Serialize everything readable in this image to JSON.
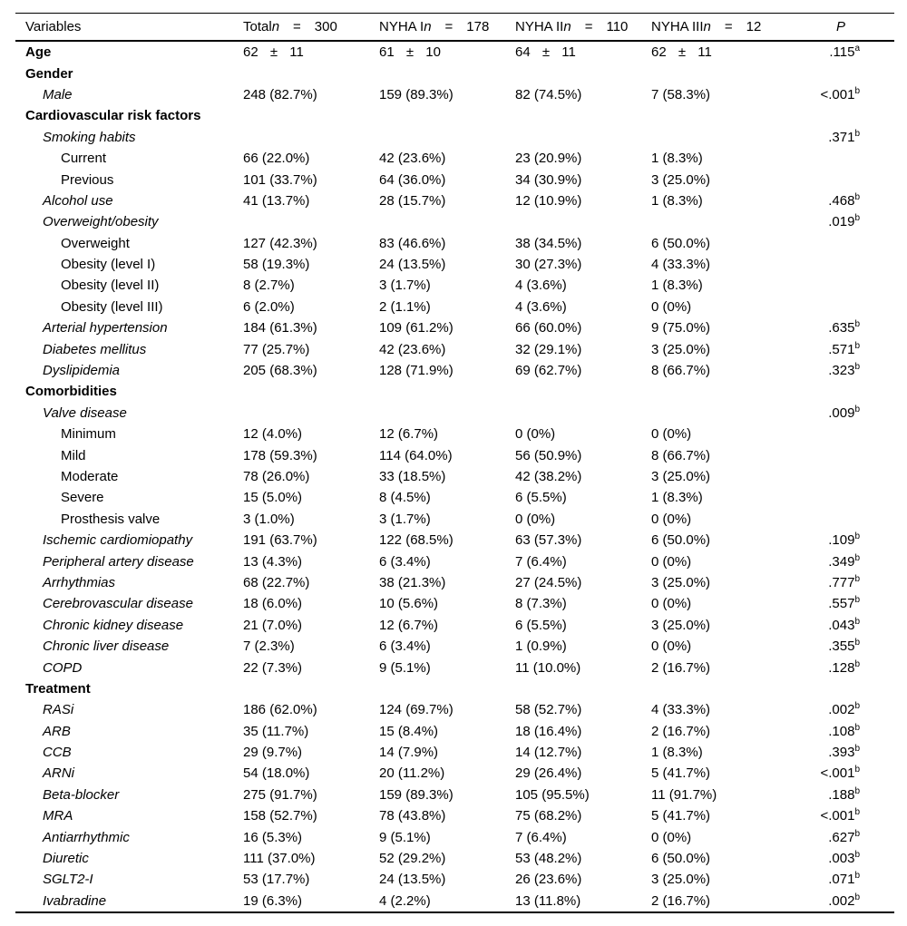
{
  "table": {
    "columns": [
      {
        "label": "Variables"
      },
      {
        "label": "Total",
        "n_symbol": "n",
        "eq": "=",
        "n": "300"
      },
      {
        "label": "NYHA I",
        "n_symbol": "n",
        "eq": "=",
        "n": "178"
      },
      {
        "label": "NYHA II",
        "n_symbol": "n",
        "eq": "=",
        "n": "110"
      },
      {
        "label": "NYHA III",
        "n_symbol": "n",
        "eq": "=",
        "n": "12"
      },
      {
        "label": "P"
      }
    ],
    "rows": [
      {
        "label": "Age",
        "level": 0,
        "style": "bold",
        "pm": true,
        "cells": [
          "62 ± 11",
          "61 ± 10",
          "64 ± 11",
          "62 ± 11"
        ],
        "p": ".115",
        "p_sup": "a"
      },
      {
        "label": "Gender",
        "level": 0,
        "style": "bold"
      },
      {
        "label": "Male",
        "level": 1,
        "style": "italic",
        "cells": [
          "248 (82.7%)",
          "159 (89.3%)",
          "82 (74.5%)",
          "7 (58.3%)"
        ],
        "p": "<.001",
        "p_sup": "b"
      },
      {
        "label": "Cardiovascular risk factors",
        "level": 0,
        "style": "bold"
      },
      {
        "label": "Smoking habits",
        "level": 1,
        "style": "italic",
        "p": ".371",
        "p_sup": "b"
      },
      {
        "label": "Current",
        "level": 2,
        "style": "plain",
        "cells": [
          "66 (22.0%)",
          "42 (23.6%)",
          "23 (20.9%)",
          "1 (8.3%)"
        ]
      },
      {
        "label": "Previous",
        "level": 2,
        "style": "plain",
        "cells": [
          "101 (33.7%)",
          "64 (36.0%)",
          "34 (30.9%)",
          "3 (25.0%)"
        ]
      },
      {
        "label": "Alcohol use",
        "level": 1,
        "style": "italic",
        "cells": [
          "41 (13.7%)",
          "28 (15.7%)",
          "12 (10.9%)",
          "1 (8.3%)"
        ],
        "p": ".468",
        "p_sup": "b"
      },
      {
        "label": "Overweight/obesity",
        "level": 1,
        "style": "italic",
        "p": ".019",
        "p_sup": "b"
      },
      {
        "label": "Overweight",
        "level": 2,
        "style": "plain",
        "cells": [
          "127 (42.3%)",
          "83 (46.6%)",
          "38 (34.5%)",
          "6 (50.0%)"
        ]
      },
      {
        "label": "Obesity (level I)",
        "level": 2,
        "style": "plain",
        "cells": [
          "58 (19.3%)",
          "24 (13.5%)",
          "30 (27.3%)",
          "4 (33.3%)"
        ]
      },
      {
        "label": "Obesity (level II)",
        "level": 2,
        "style": "plain",
        "cells": [
          "8 (2.7%)",
          "3 (1.7%)",
          "4 (3.6%)",
          "1 (8.3%)"
        ]
      },
      {
        "label": "Obesity (level III)",
        "level": 2,
        "style": "plain",
        "cells": [
          "6 (2.0%)",
          "2 (1.1%)",
          "4 (3.6%)",
          "0 (0%)"
        ]
      },
      {
        "label": "Arterial hypertension",
        "level": 1,
        "style": "italic",
        "cells": [
          "184 (61.3%)",
          "109 (61.2%)",
          "66 (60.0%)",
          "9 (75.0%)"
        ],
        "p": ".635",
        "p_sup": "b"
      },
      {
        "label": "Diabetes mellitus",
        "level": 1,
        "style": "italic",
        "cells": [
          "77 (25.7%)",
          "42 (23.6%)",
          "32 (29.1%)",
          "3 (25.0%)"
        ],
        "p": ".571",
        "p_sup": "b"
      },
      {
        "label": "Dyslipidemia",
        "level": 1,
        "style": "italic",
        "cells": [
          "205 (68.3%)",
          "128 (71.9%)",
          "69 (62.7%)",
          "8 (66.7%)"
        ],
        "p": ".323",
        "p_sup": "b"
      },
      {
        "label": "Comorbidities",
        "level": 0,
        "style": "bold"
      },
      {
        "label": "Valve disease",
        "level": 1,
        "style": "italic",
        "p": ".009",
        "p_sup": "b"
      },
      {
        "label": "Minimum",
        "level": 2,
        "style": "plain",
        "cells": [
          "12 (4.0%)",
          "12 (6.7%)",
          "0 (0%)",
          "0 (0%)"
        ]
      },
      {
        "label": "Mild",
        "level": 2,
        "style": "plain",
        "cells": [
          "178 (59.3%)",
          "114 (64.0%)",
          "56 (50.9%)",
          "8 (66.7%)"
        ]
      },
      {
        "label": "Moderate",
        "level": 2,
        "style": "plain",
        "cells": [
          "78 (26.0%)",
          "33 (18.5%)",
          "42 (38.2%)",
          "3 (25.0%)"
        ]
      },
      {
        "label": "Severe",
        "level": 2,
        "style": "plain",
        "cells": [
          "15 (5.0%)",
          "8 (4.5%)",
          "6 (5.5%)",
          "1 (8.3%)"
        ]
      },
      {
        "label": "Prosthesis valve",
        "level": 2,
        "style": "plain",
        "cells": [
          "3 (1.0%)",
          "3 (1.7%)",
          "0 (0%)",
          "0 (0%)"
        ]
      },
      {
        "label": "Ischemic cardiomiopathy",
        "level": 1,
        "style": "italic",
        "cells": [
          "191 (63.7%)",
          "122 (68.5%)",
          "63 (57.3%)",
          "6 (50.0%)"
        ],
        "p": ".109",
        "p_sup": "b"
      },
      {
        "label": "Peripheral artery disease",
        "level": 1,
        "style": "italic",
        "cells": [
          "13 (4.3%)",
          "6 (3.4%)",
          "7 (6.4%)",
          "0 (0%)"
        ],
        "p": ".349",
        "p_sup": "b"
      },
      {
        "label": "Arrhythmias",
        "level": 1,
        "style": "italic",
        "cells": [
          "68 (22.7%)",
          "38 (21.3%)",
          "27 (24.5%)",
          "3 (25.0%)"
        ],
        "p": ".777",
        "p_sup": "b"
      },
      {
        "label": "Cerebrovascular disease",
        "level": 1,
        "style": "italic",
        "cells": [
          "18 (6.0%)",
          "10 (5.6%)",
          "8 (7.3%)",
          "0 (0%)"
        ],
        "p": ".557",
        "p_sup": "b"
      },
      {
        "label": "Chronic kidney disease",
        "level": 1,
        "style": "italic",
        "cells": [
          "21 (7.0%)",
          "12 (6.7%)",
          "6 (5.5%)",
          "3 (25.0%)"
        ],
        "p": ".043",
        "p_sup": "b"
      },
      {
        "label": "Chronic liver disease",
        "level": 1,
        "style": "italic",
        "cells": [
          "7 (2.3%)",
          "6 (3.4%)",
          "1 (0.9%)",
          "0 (0%)"
        ],
        "p": ".355",
        "p_sup": "b"
      },
      {
        "label": "COPD",
        "level": 1,
        "style": "italic",
        "cells": [
          "22 (7.3%)",
          "9 (5.1%)",
          "11 (10.0%)",
          "2 (16.7%)"
        ],
        "p": ".128",
        "p_sup": "b"
      },
      {
        "label": "Treatment",
        "level": 0,
        "style": "bold"
      },
      {
        "label": "RASi",
        "level": 1,
        "style": "italic",
        "cells": [
          "186 (62.0%)",
          "124 (69.7%)",
          "58 (52.7%)",
          "4 (33.3%)"
        ],
        "p": ".002",
        "p_sup": "b"
      },
      {
        "label": "ARB",
        "level": 1,
        "style": "italic",
        "cells": [
          "35 (11.7%)",
          "15 (8.4%)",
          "18 (16.4%)",
          "2 (16.7%)"
        ],
        "p": ".108",
        "p_sup": "b"
      },
      {
        "label": "CCB",
        "level": 1,
        "style": "italic",
        "cells": [
          "29 (9.7%)",
          "14 (7.9%)",
          "14 (12.7%)",
          "1 (8.3%)"
        ],
        "p": ".393",
        "p_sup": "b"
      },
      {
        "label": "ARNi",
        "level": 1,
        "style": "italic",
        "cells": [
          "54 (18.0%)",
          "20 (11.2%)",
          "29 (26.4%)",
          "5 (41.7%)"
        ],
        "p": "<.001",
        "p_sup": "b"
      },
      {
        "label": "Beta-blocker",
        "level": 1,
        "style": "italic",
        "cells": [
          "275 (91.7%)",
          "159 (89.3%)",
          "105 (95.5%)",
          "11 (91.7%)"
        ],
        "p": ".188",
        "p_sup": "b"
      },
      {
        "label": "MRA",
        "level": 1,
        "style": "italic",
        "cells": [
          "158 (52.7%)",
          "78 (43.8%)",
          "75 (68.2%)",
          "5 (41.7%)"
        ],
        "p": "<.001",
        "p_sup": "b"
      },
      {
        "label": "Antiarrhythmic",
        "level": 1,
        "style": "italic",
        "cells": [
          "16 (5.3%)",
          "9 (5.1%)",
          "7 (6.4%)",
          "0 (0%)"
        ],
        "p": ".627",
        "p_sup": "b"
      },
      {
        "label": "Diuretic",
        "level": 1,
        "style": "italic",
        "cells": [
          "111 (37.0%)",
          "52 (29.2%)",
          "53 (48.2%)",
          "6 (50.0%)"
        ],
        "p": ".003",
        "p_sup": "b"
      },
      {
        "label": "SGLT2-I",
        "level": 1,
        "style": "italic",
        "cells": [
          "53 (17.7%)",
          "24 (13.5%)",
          "26 (23.6%)",
          "3 (25.0%)"
        ],
        "p": ".071",
        "p_sup": "b"
      },
      {
        "label": "Ivabradine",
        "level": 1,
        "style": "italic",
        "cells": [
          "19 (6.3%)",
          "4 (2.2%)",
          "13 (11.8%)",
          "2 (16.7%)"
        ],
        "p": ".002",
        "p_sup": "b"
      }
    ]
  }
}
